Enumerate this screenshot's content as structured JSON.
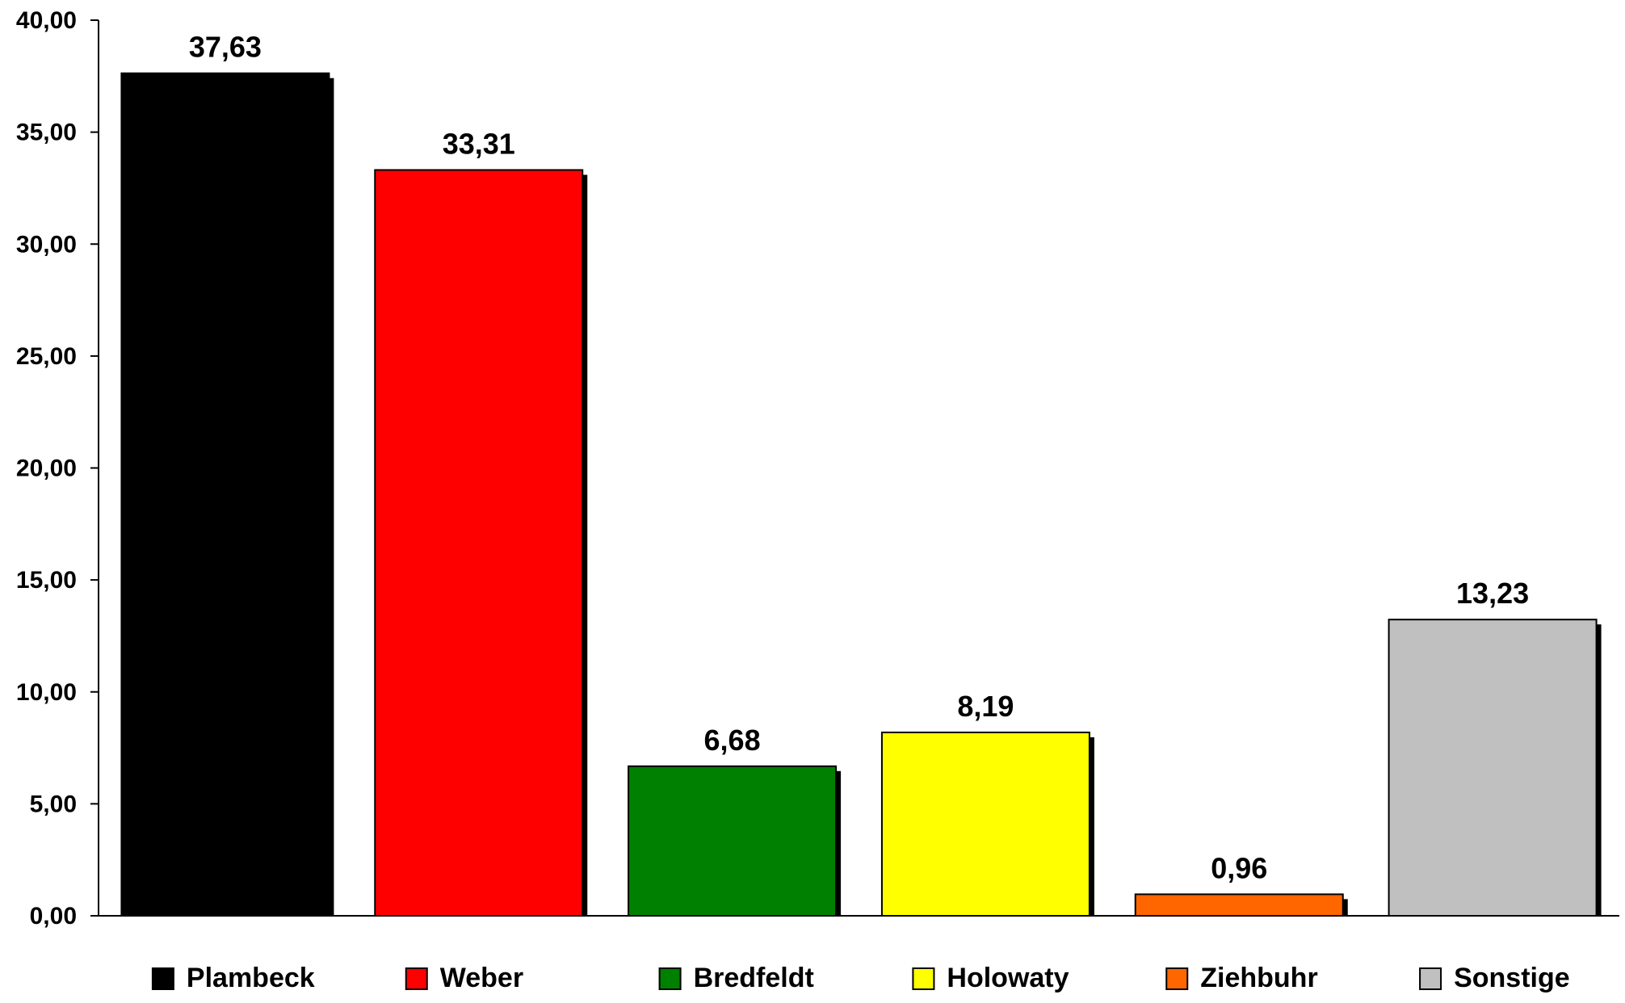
{
  "chart_data": {
    "type": "bar",
    "categories": [
      "Plambeck",
      "Weber",
      "Bredfeldt",
      "Holowaty",
      "Ziehbuhr",
      "Sonstige"
    ],
    "values": [
      37.63,
      33.31,
      6.68,
      8.19,
      0.96,
      13.23
    ],
    "value_labels": [
      "37,63",
      "33,31",
      "6,68",
      "8,19",
      "0,96",
      "13,23"
    ],
    "colors": [
      "#000000",
      "#ff0000",
      "#008000",
      "#ffff00",
      "#ff6600",
      "#c0c0c0"
    ],
    "ylim": [
      0,
      40
    ],
    "yticks": [
      0,
      5,
      10,
      15,
      20,
      25,
      30,
      35,
      40
    ],
    "ytick_labels": [
      "0,00",
      "5,00",
      "10,00",
      "15,00",
      "20,00",
      "25,00",
      "30,00",
      "35,00",
      "40,00"
    ],
    "title": "",
    "xlabel": "",
    "ylabel": "",
    "grid": false,
    "legend_position": "bottom"
  }
}
